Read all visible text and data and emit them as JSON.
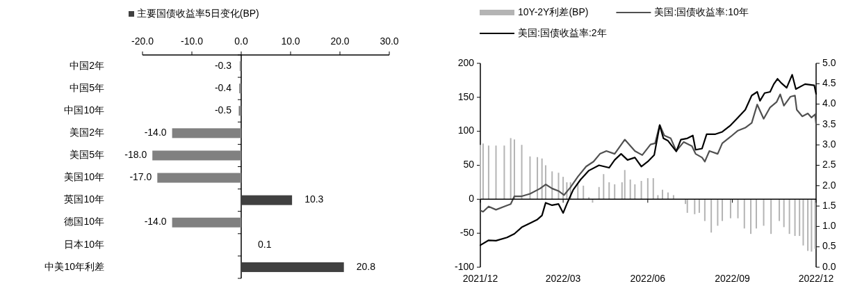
{
  "chart_data": [
    {
      "type": "bar",
      "orientation": "horizontal",
      "legend": "top",
      "categories": [
        "中国2年",
        "中国5年",
        "中国10年",
        "美国2年",
        "美国5年",
        "美国10年",
        "英国10年",
        "德国10年",
        "日本10年",
        "中美10年利差"
      ],
      "xlim": [
        -20,
        30
      ],
      "xticks": [
        {
          "value": -20,
          "label": "-20.0"
        },
        {
          "value": -10,
          "label": "-10.0"
        },
        {
          "value": 0,
          "label": "0.0"
        },
        {
          "value": 10,
          "label": "10.0"
        },
        {
          "value": 20,
          "label": "20.0"
        },
        {
          "value": 30,
          "label": "30.0"
        }
      ],
      "series": [
        {
          "name": "主要国债收益率5日变化(BP)",
          "color": "#404040",
          "values": [
            -0.3,
            -0.4,
            -0.5,
            -14.0,
            -18.0,
            -17.0,
            10.3,
            -14.0,
            0.1,
            20.8
          ],
          "colors": [
            "#808080",
            "#808080",
            "#808080",
            "#808080",
            "#808080",
            "#808080",
            "#404040",
            "#808080",
            "#404040",
            "#404040"
          ],
          "value_labels": [
            "-0.3",
            "-0.4",
            "-0.5",
            "-14.0",
            "-18.0",
            "-17.0",
            "10.3",
            "-14.0",
            "0.1",
            "20.8"
          ]
        }
      ]
    },
    {
      "type": "bar",
      "legend": "top",
      "xlim": [
        "2021-12-01",
        "2022-12-01"
      ],
      "xticks": [
        {
          "value": "2021-12-01",
          "label": "2021/12"
        },
        {
          "value": "2022-03-01",
          "label": "2022/03"
        },
        {
          "value": "2022-06-01",
          "label": "2022/06"
        },
        {
          "value": "2022-09-01",
          "label": "2022/09"
        },
        {
          "value": "2022-12-01",
          "label": "2022/12"
        }
      ],
      "ylim": [
        -100,
        200
      ],
      "yticks": [
        -100,
        -50,
        0,
        50,
        100,
        150,
        200
      ],
      "y2lim": [
        0,
        5
      ],
      "y2ticks": [
        {
          "value": 0,
          "label": "0.0"
        },
        {
          "value": 0.5,
          "label": "0.5"
        },
        {
          "value": 1,
          "label": "1.0"
        },
        {
          "value": 1.5,
          "label": "1.5"
        },
        {
          "value": 2,
          "label": "2.0"
        },
        {
          "value": 2.5,
          "label": "2.5"
        },
        {
          "value": 3,
          "label": "3.0"
        },
        {
          "value": 3.5,
          "label": "3.5"
        },
        {
          "value": 4,
          "label": "4.0"
        },
        {
          "value": 4.5,
          "label": "4.5"
        },
        {
          "value": 5,
          "label": "5.0"
        }
      ],
      "series": [
        {
          "type": "bar",
          "name": "10Y-2Y利差(BP)",
          "color": "#b4b4b4",
          "x": [
            "2021-12-01",
            "2021-12-04",
            "2021-12-10",
            "2021-12-18",
            "2021-12-27",
            "2022-01-03",
            "2022-01-07",
            "2022-01-15",
            "2022-01-24",
            "2022-02-01",
            "2022-02-06",
            "2022-02-10",
            "2022-02-17",
            "2022-02-24",
            "2022-03-01",
            "2022-03-05",
            "2022-03-09",
            "2022-03-17",
            "2022-03-23",
            "2022-03-29",
            "2022-04-02",
            "2022-04-09",
            "2022-04-14",
            "2022-04-20",
            "2022-04-26",
            "2022-05-04",
            "2022-05-07",
            "2022-05-13",
            "2022-05-18",
            "2022-05-25",
            "2022-06-01",
            "2022-06-07",
            "2022-06-12",
            "2022-06-17",
            "2022-06-23",
            "2022-06-29",
            "2022-07-12",
            "2022-07-14",
            "2022-07-22",
            "2022-07-27",
            "2022-08-02",
            "2022-08-09",
            "2022-08-16",
            "2022-08-21",
            "2022-08-30",
            "2022-09-07",
            "2022-09-14",
            "2022-09-21",
            "2022-09-27",
            "2022-10-05",
            "2022-10-13",
            "2022-10-22",
            "2022-10-27",
            "2022-11-02",
            "2022-11-08",
            "2022-11-13",
            "2022-11-17",
            "2022-11-22",
            "2022-11-26",
            "2022-11-30"
          ],
          "values": [
            80,
            82,
            79,
            79,
            79,
            90,
            88,
            80,
            63,
            62,
            60,
            50,
            41,
            39,
            33,
            25,
            25,
            22,
            20,
            3,
            -5,
            18,
            37,
            25,
            22,
            25,
            43,
            29,
            22,
            27,
            31,
            31,
            6,
            14,
            10,
            6,
            -7,
            -20,
            -22,
            -20,
            -32,
            -49,
            -39,
            -32,
            -28,
            -28,
            -43,
            -51,
            -43,
            -39,
            -51,
            -32,
            -41,
            -51,
            -54,
            -54,
            -68,
            -76,
            -77,
            -73
          ]
        },
        {
          "type": "line",
          "axis": "y2",
          "name": "美国:国债收益率:10年",
          "color": "#505050",
          "x": [
            "2021-12-01",
            "2021-12-04",
            "2021-12-10",
            "2021-12-18",
            "2021-12-27",
            "2022-01-03",
            "2022-01-07",
            "2022-01-15",
            "2022-01-24",
            "2022-02-04",
            "2022-02-10",
            "2022-02-17",
            "2022-02-24",
            "2022-03-02",
            "2022-03-09",
            "2022-03-17",
            "2022-03-26",
            "2022-04-03",
            "2022-04-10",
            "2022-04-17",
            "2022-04-26",
            "2022-05-07",
            "2022-05-18",
            "2022-05-26",
            "2022-06-04",
            "2022-06-09",
            "2022-06-14",
            "2022-06-19",
            "2022-06-26",
            "2022-07-02",
            "2022-07-10",
            "2022-07-19",
            "2022-07-23",
            "2022-07-30",
            "2022-08-02",
            "2022-08-07",
            "2022-08-16",
            "2022-08-21",
            "2022-08-30",
            "2022-09-07",
            "2022-09-15",
            "2022-09-22",
            "2022-09-28",
            "2022-10-05",
            "2022-10-12",
            "2022-10-19",
            "2022-10-23",
            "2022-10-27",
            "2022-11-03",
            "2022-11-08",
            "2022-11-10",
            "2022-11-16",
            "2022-11-22",
            "2022-11-26",
            "2022-11-30",
            "2022-12-01"
          ],
          "values": [
            1.39,
            1.36,
            1.49,
            1.41,
            1.49,
            1.55,
            1.74,
            1.74,
            1.8,
            1.93,
            2.03,
            1.93,
            1.87,
            1.77,
            1.96,
            2.22,
            2.47,
            2.59,
            2.78,
            2.85,
            2.78,
            3.13,
            2.85,
            2.75,
            3.01,
            3.04,
            3.49,
            3.23,
            3.16,
            2.85,
            3.07,
            2.97,
            2.78,
            2.69,
            2.59,
            2.85,
            2.78,
            3.04,
            3.2,
            3.35,
            3.42,
            3.54,
            3.99,
            3.64,
            3.92,
            4.05,
            4.24,
            3.96,
            4.18,
            4.21,
            3.86,
            3.7,
            3.77,
            3.67,
            3.75,
            3.51
          ]
        },
        {
          "type": "line",
          "axis": "y2",
          "name": "美国:国债收益率:2年",
          "color": "#000000",
          "x": [
            "2021-12-01",
            "2021-12-10",
            "2021-12-18",
            "2021-12-30",
            "2022-01-07",
            "2022-01-15",
            "2022-01-24",
            "2022-02-01",
            "2022-02-06",
            "2022-02-10",
            "2022-02-17",
            "2022-02-24",
            "2022-03-01",
            "2022-03-05",
            "2022-03-12",
            "2022-03-20",
            "2022-03-29",
            "2022-04-09",
            "2022-04-20",
            "2022-04-26",
            "2022-05-03",
            "2022-05-10",
            "2022-05-18",
            "2022-05-25",
            "2022-06-01",
            "2022-06-08",
            "2022-06-14",
            "2022-06-18",
            "2022-06-23",
            "2022-07-02",
            "2022-07-07",
            "2022-07-14",
            "2022-07-20",
            "2022-07-23",
            "2022-07-30",
            "2022-08-04",
            "2022-08-13",
            "2022-08-21",
            "2022-08-30",
            "2022-09-07",
            "2022-09-15",
            "2022-09-22",
            "2022-09-28",
            "2022-10-01",
            "2022-10-06",
            "2022-10-12",
            "2022-10-16",
            "2022-10-20",
            "2022-10-24",
            "2022-10-30",
            "2022-11-05",
            "2022-11-09",
            "2022-11-19",
            "2022-11-29",
            "2022-12-01"
          ],
          "values": [
            0.54,
            0.66,
            0.65,
            0.73,
            0.82,
            0.98,
            1.08,
            1.17,
            1.27,
            1.58,
            1.52,
            1.55,
            1.33,
            1.55,
            1.9,
            2.15,
            2.37,
            2.5,
            2.44,
            2.63,
            2.78,
            2.63,
            2.69,
            2.47,
            2.59,
            2.75,
            3.48,
            3.16,
            3.1,
            2.84,
            3.13,
            3.16,
            3.23,
            2.88,
            2.91,
            3.26,
            3.26,
            3.32,
            3.48,
            3.67,
            3.86,
            4.21,
            4.3,
            4.08,
            4.27,
            4.3,
            4.49,
            4.62,
            4.52,
            4.4,
            4.72,
            4.37,
            4.49,
            4.46,
            4.25
          ]
        }
      ]
    }
  ]
}
